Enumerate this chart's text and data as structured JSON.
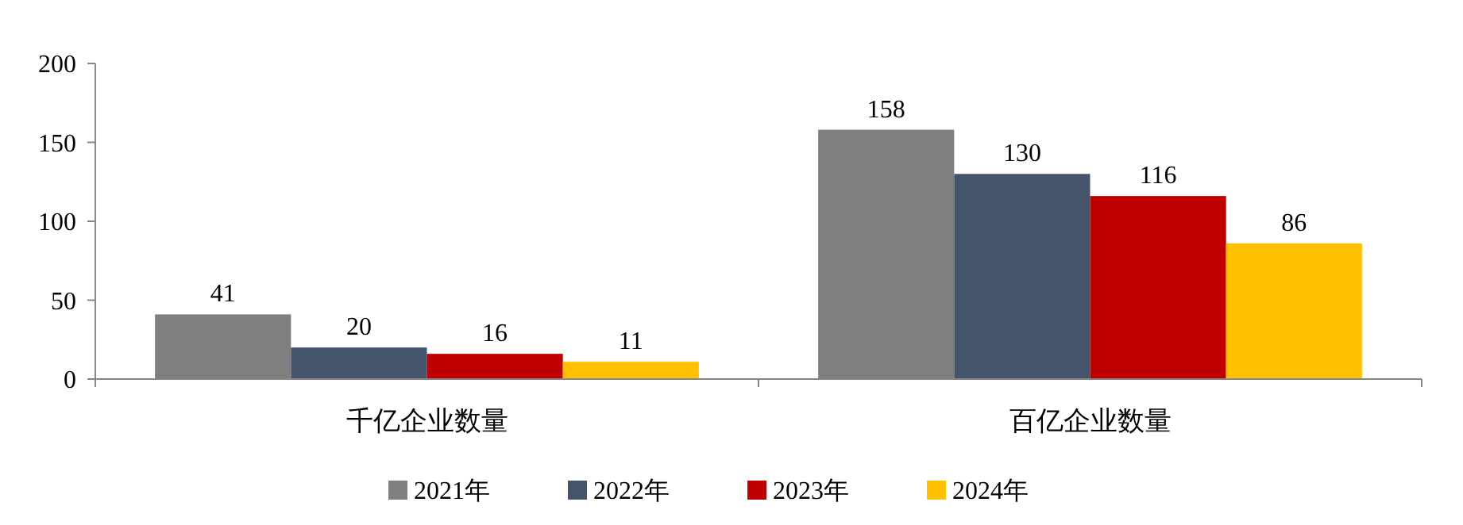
{
  "chart_data": {
    "type": "bar",
    "categories": [
      "千亿企业数量",
      "百亿企业数量"
    ],
    "series": [
      {
        "name": "2021年",
        "color": "#7f7f7f",
        "values": [
          41,
          158
        ]
      },
      {
        "name": "2022年",
        "color": "#44546a",
        "values": [
          20,
          130
        ]
      },
      {
        "name": "2023年",
        "color": "#c00000",
        "values": [
          16,
          116
        ]
      },
      {
        "name": "2024年",
        "color": "#ffc000",
        "values": [
          11,
          86
        ]
      }
    ],
    "ylim": [
      0,
      200
    ],
    "yticks": [
      0,
      50,
      100,
      150,
      200
    ],
    "grid": false,
    "legend": "bottom",
    "data_labels": true
  }
}
